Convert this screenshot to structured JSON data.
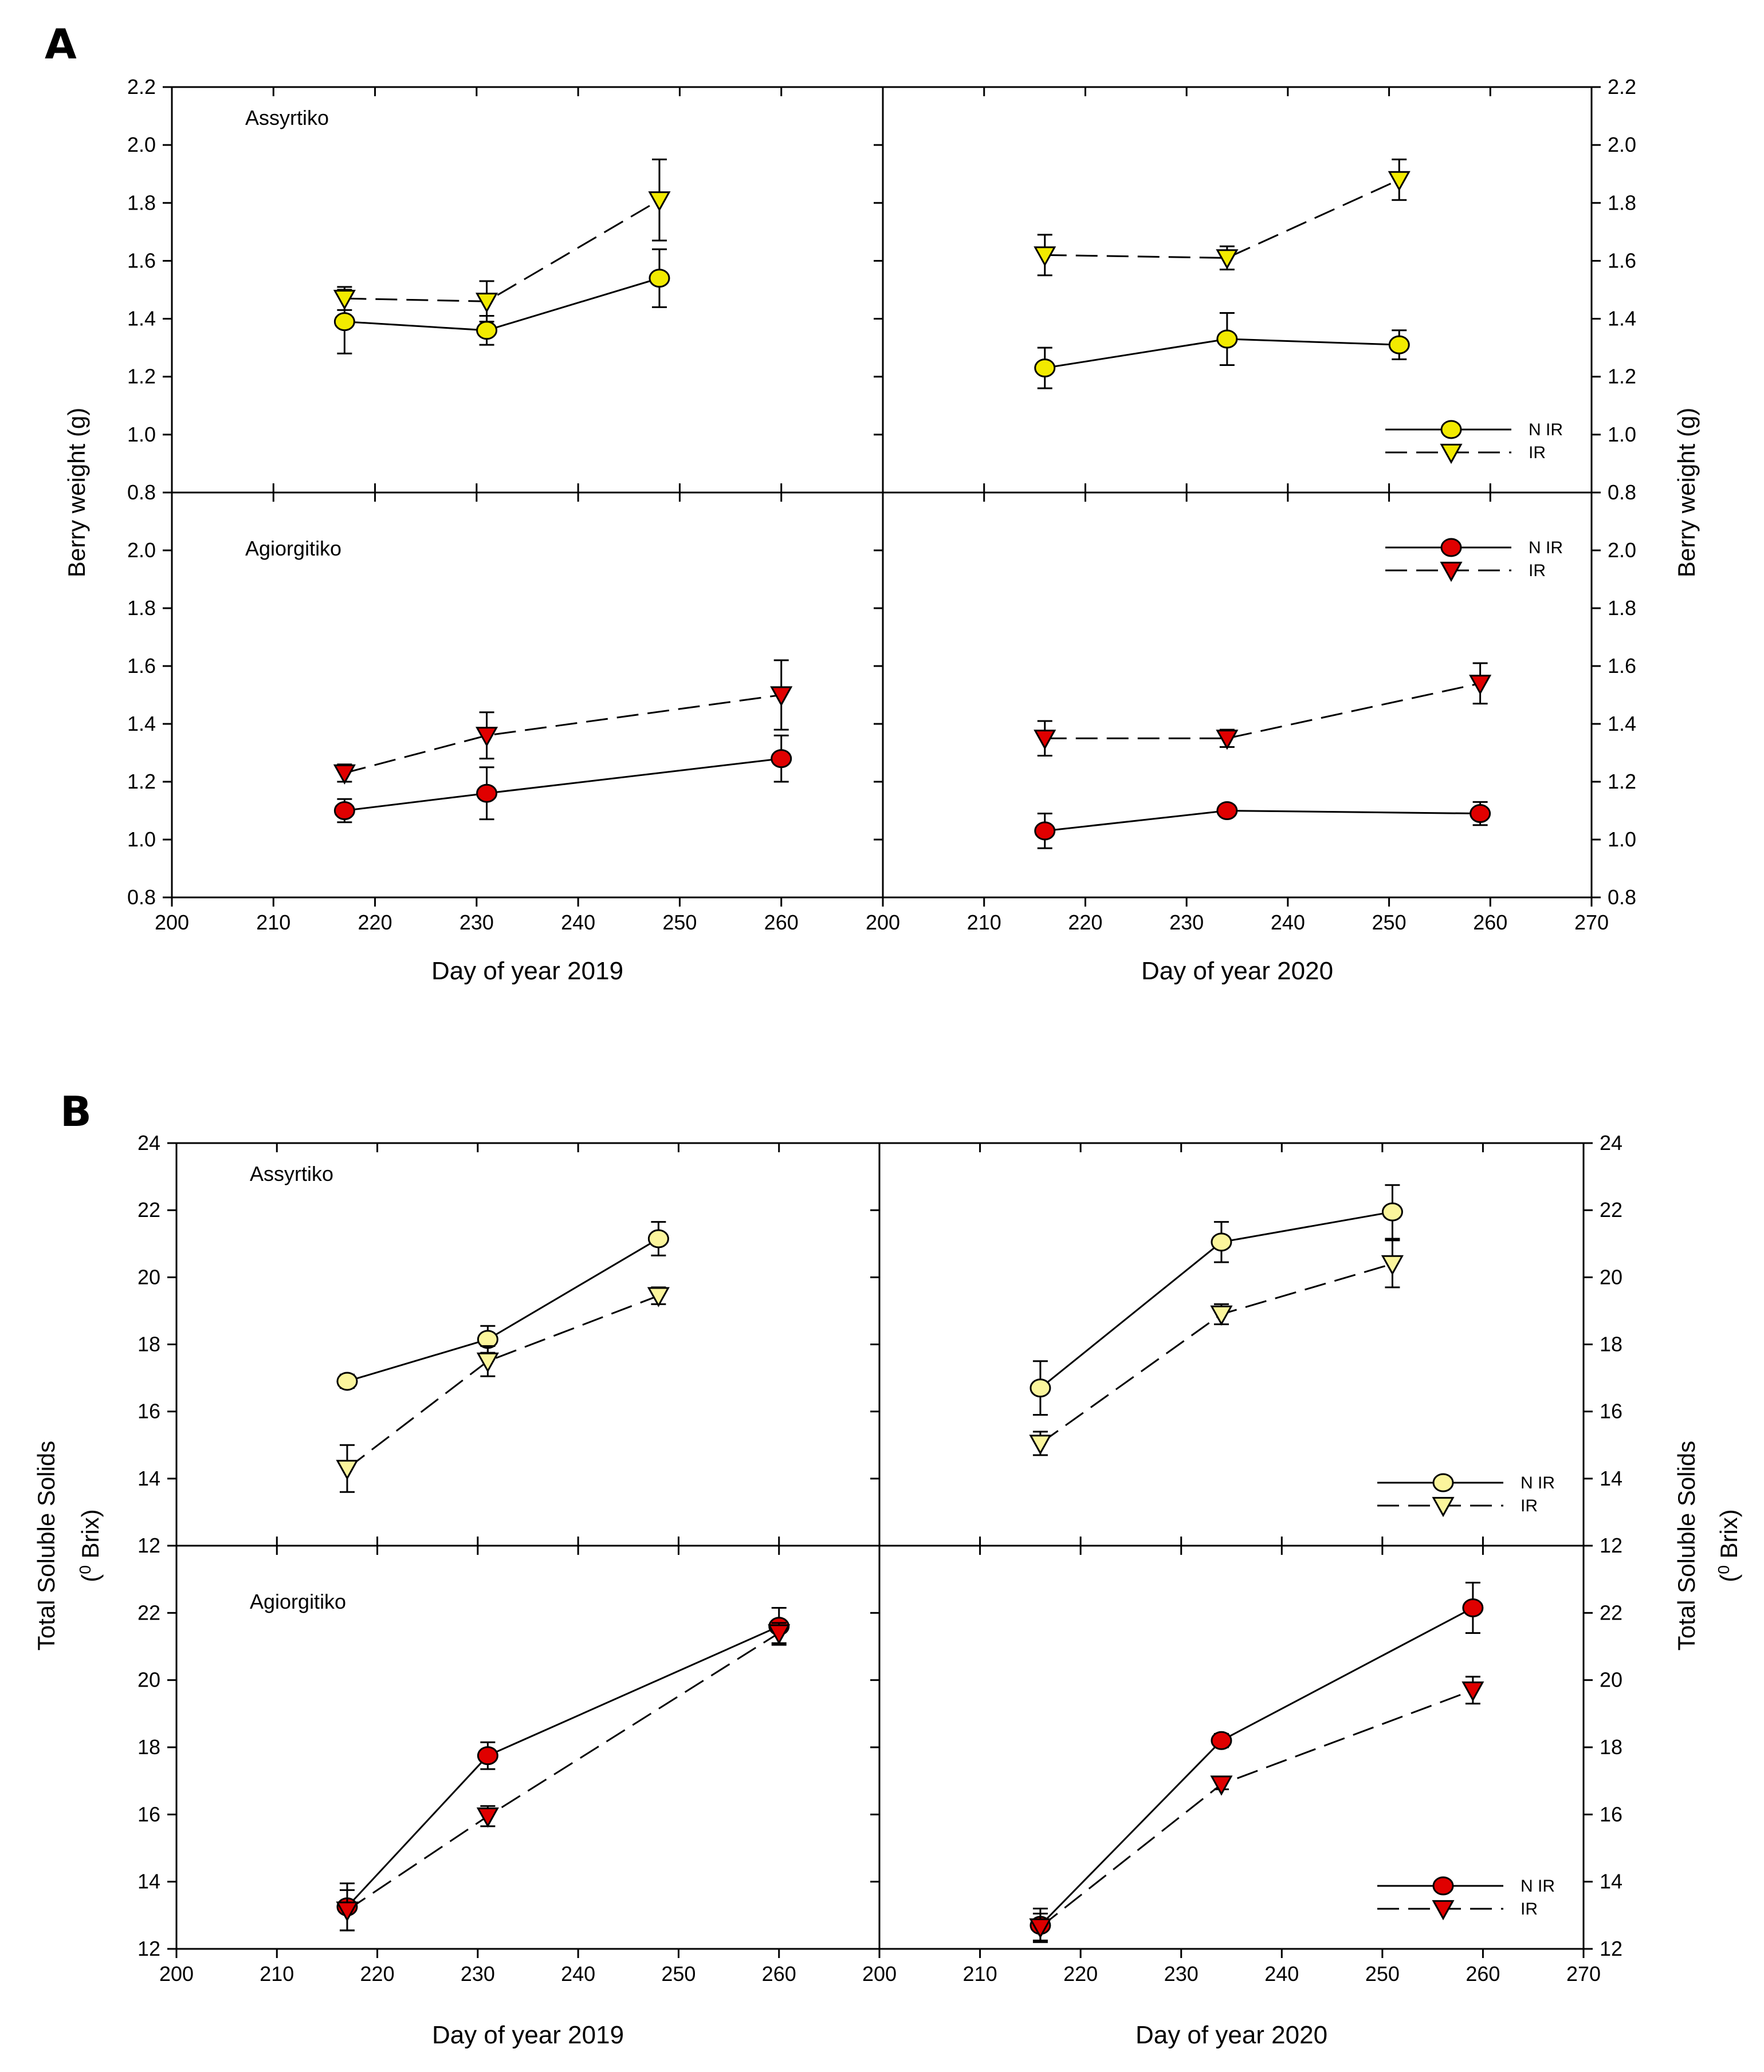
{
  "figure_labels": {
    "A": "A",
    "B": "B"
  },
  "chart_data": [
    {
      "id": "A",
      "type": "line",
      "ylabel": "Berry weight (g)",
      "ylabel_right": "Berry weight (g)",
      "ylim": [
        0.8,
        2.2
      ],
      "yticks_top": [
        "0.8",
        "1.0",
        "1.2",
        "1.4",
        "1.6",
        "1.8",
        "2.0",
        "2.2"
      ],
      "yticks_bottom": [
        "0.8",
        "1.0",
        "1.2",
        "1.4",
        "1.6",
        "1.8",
        "2.0"
      ],
      "x_left": {
        "xlabel": "Day of year 2019",
        "xlim": [
          200,
          270
        ],
        "ticks": [
          "200",
          "210",
          "220",
          "230",
          "240",
          "250",
          "260"
        ]
      },
      "x_right": {
        "xlabel": "Day of year 2020",
        "xlim": [
          200,
          270
        ],
        "ticks": [
          "200",
          "210",
          "220",
          "230",
          "240",
          "250",
          "260",
          "270"
        ]
      },
      "rows": [
        {
          "cultivar": "Assyrtiko",
          "color": "#f2ea00",
          "legend_in": "right",
          "legend_pos": "bottom-right"
        },
        {
          "cultivar": "Agiorgitiko",
          "color": "#e00000",
          "legend_in": "right",
          "legend_pos": "top-right"
        }
      ],
      "legend": {
        "nir": "N IR",
        "ir": "IR"
      },
      "panels": [
        {
          "row": 0,
          "col": 0,
          "series": [
            {
              "name": "N IR",
              "marker": "circle",
              "dash": false,
              "x": [
                217,
                231,
                248
              ],
              "y": [
                1.39,
                1.36,
                1.54
              ],
              "err": [
                0.11,
                0.05,
                0.1
              ]
            },
            {
              "name": "IR",
              "marker": "triangle",
              "dash": true,
              "x": [
                217,
                231,
                248
              ],
              "y": [
                1.47,
                1.46,
                1.81
              ],
              "err": [
                0.04,
                0.07,
                0.14
              ]
            }
          ]
        },
        {
          "row": 0,
          "col": 1,
          "series": [
            {
              "name": "N IR",
              "marker": "circle",
              "dash": false,
              "x": [
                216,
                234,
                251
              ],
              "y": [
                1.23,
                1.33,
                1.31
              ],
              "err": [
                0.07,
                0.09,
                0.05
              ]
            },
            {
              "name": "IR",
              "marker": "triangle",
              "dash": true,
              "x": [
                216,
                234,
                251
              ],
              "y": [
                1.62,
                1.61,
                1.88
              ],
              "err": [
                0.07,
                0.04,
                0.07
              ]
            }
          ]
        },
        {
          "row": 1,
          "col": 0,
          "series": [
            {
              "name": "N IR",
              "marker": "circle",
              "dash": false,
              "x": [
                217,
                231,
                260
              ],
              "y": [
                1.1,
                1.16,
                1.28
              ],
              "err": [
                0.04,
                0.09,
                0.08
              ]
            },
            {
              "name": "IR",
              "marker": "triangle",
              "dash": true,
              "x": [
                217,
                231,
                260
              ],
              "y": [
                1.23,
                1.36,
                1.5
              ],
              "err": [
                0.03,
                0.08,
                0.12
              ]
            }
          ]
        },
        {
          "row": 1,
          "col": 1,
          "series": [
            {
              "name": "N IR",
              "marker": "circle",
              "dash": false,
              "x": [
                216,
                234,
                259
              ],
              "y": [
                1.03,
                1.1,
                1.09
              ],
              "err": [
                0.06,
                0.02,
                0.04
              ]
            },
            {
              "name": "IR",
              "marker": "triangle",
              "dash": true,
              "x": [
                216,
                234,
                259
              ],
              "y": [
                1.35,
                1.35,
                1.54
              ],
              "err": [
                0.06,
                0.03,
                0.07
              ]
            }
          ]
        }
      ]
    },
    {
      "id": "B",
      "type": "line",
      "ylabel": "Total Soluble Solids",
      "ylabel2_pre": "(",
      "ylabel2_sup": "0",
      "ylabel2_post": " Brix)",
      "ylim": [
        12,
        24
      ],
      "yticks_top": [
        "12",
        "14",
        "16",
        "18",
        "20",
        "22",
        "24"
      ],
      "yticks_bottom": [
        "12",
        "14",
        "16",
        "18",
        "20",
        "22"
      ],
      "x_left": {
        "xlabel": "Day of year 2019",
        "xlim": [
          200,
          270
        ],
        "ticks": [
          "200",
          "210",
          "220",
          "230",
          "240",
          "250",
          "260"
        ]
      },
      "x_right": {
        "xlabel": "Day of year 2020",
        "xlim": [
          200,
          270
        ],
        "ticks": [
          "200",
          "210",
          "220",
          "230",
          "240",
          "250",
          "260",
          "270"
        ]
      },
      "rows": [
        {
          "cultivar": "Assyrtiko",
          "color": "#fbf59c",
          "legend_in": "right",
          "legend_pos": "bottom-right"
        },
        {
          "cultivar": "Agiorgitiko",
          "color": "#e00000",
          "legend_in": "right",
          "legend_pos": "bottom-right"
        }
      ],
      "legend": {
        "nir": "N IR",
        "ir": "IR"
      },
      "panels": [
        {
          "row": 0,
          "col": 0,
          "series": [
            {
              "name": "N IR",
              "marker": "circle",
              "dash": false,
              "x": [
                217,
                231,
                248
              ],
              "y": [
                16.9,
                18.15,
                21.15
              ],
              "err": [
                0.2,
                0.4,
                0.5
              ]
            },
            {
              "name": "IR",
              "marker": "triangle",
              "dash": true,
              "x": [
                217,
                231,
                248
              ],
              "y": [
                14.3,
                17.5,
                19.45
              ],
              "err": [
                0.7,
                0.45,
                0.25
              ]
            }
          ]
        },
        {
          "row": 0,
          "col": 1,
          "series": [
            {
              "name": "N IR",
              "marker": "circle",
              "dash": false,
              "x": [
                216,
                234,
                251
              ],
              "y": [
                16.7,
                21.05,
                21.95
              ],
              "err": [
                0.8,
                0.6,
                0.8
              ]
            },
            {
              "name": "IR",
              "marker": "triangle",
              "dash": true,
              "x": [
                216,
                234,
                251
              ],
              "y": [
                15.05,
                18.9,
                20.4
              ],
              "err": [
                0.35,
                0.3,
                0.7
              ]
            }
          ]
        },
        {
          "row": 1,
          "col": 0,
          "series": [
            {
              "name": "N IR",
              "marker": "circle",
              "dash": false,
              "x": [
                217,
                231,
                260
              ],
              "y": [
                13.25,
                17.75,
                21.6
              ],
              "err": [
                0.7,
                0.4,
                0.55
              ]
            },
            {
              "name": "IR",
              "marker": "triangle",
              "dash": true,
              "x": [
                217,
                231,
                260
              ],
              "y": [
                13.15,
                15.95,
                21.4
              ],
              "err": [
                0.6,
                0.3,
                0.3
              ]
            }
          ]
        },
        {
          "row": 1,
          "col": 1,
          "series": [
            {
              "name": "N IR",
              "marker": "circle",
              "dash": false,
              "x": [
                216,
                234,
                259
              ],
              "y": [
                12.7,
                18.2,
                22.15
              ],
              "err": [
                0.5,
                0.2,
                0.75
              ]
            },
            {
              "name": "IR",
              "marker": "triangle",
              "dash": true,
              "x": [
                216,
                234,
                259
              ],
              "y": [
                12.65,
                16.9,
                19.7
              ],
              "err": [
                0.4,
                0.15,
                0.4
              ]
            }
          ]
        }
      ]
    }
  ]
}
